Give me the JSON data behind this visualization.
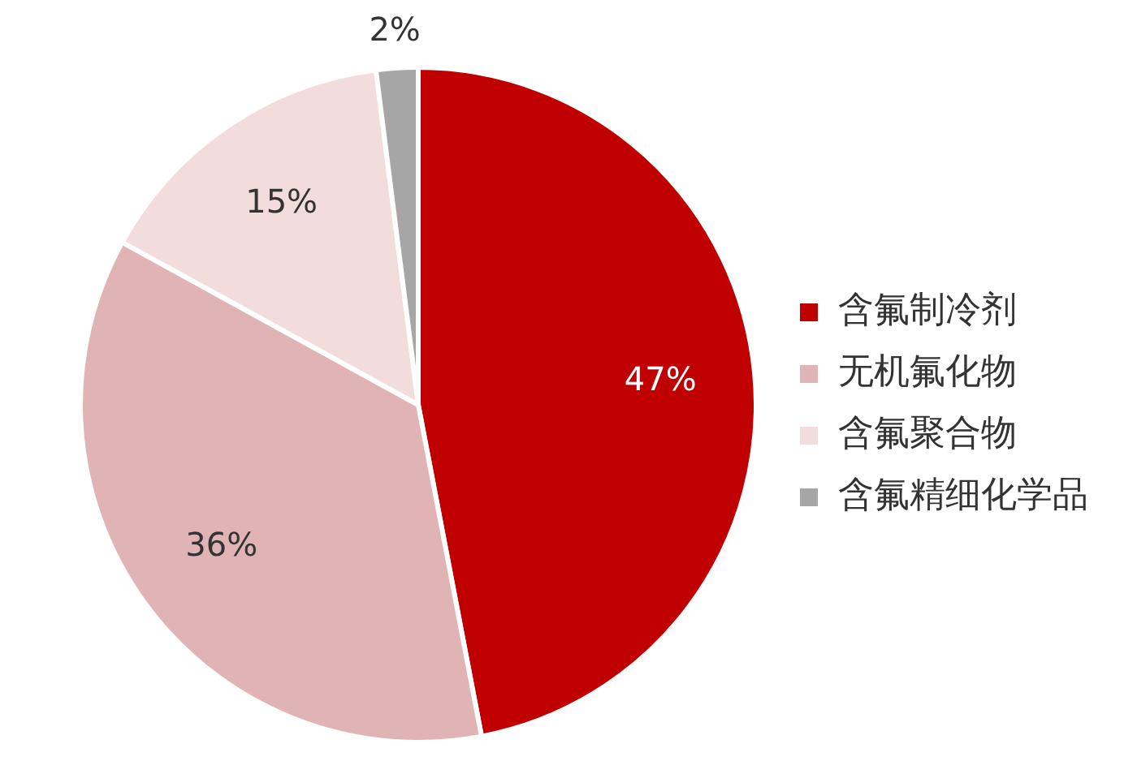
{
  "chart_data": {
    "type": "pie",
    "categories": [
      "含氟制冷剂",
      "无机氟化物",
      "含氟聚合物",
      "含氟精细化学品"
    ],
    "values": [
      47,
      36,
      15,
      2
    ],
    "colors": [
      "#c00000",
      "#e0b4b4",
      "#f2dcdc",
      "#a6a6a6"
    ],
    "value_labels": [
      "47%",
      "36%",
      "15%",
      "2%"
    ],
    "legend": "right"
  }
}
